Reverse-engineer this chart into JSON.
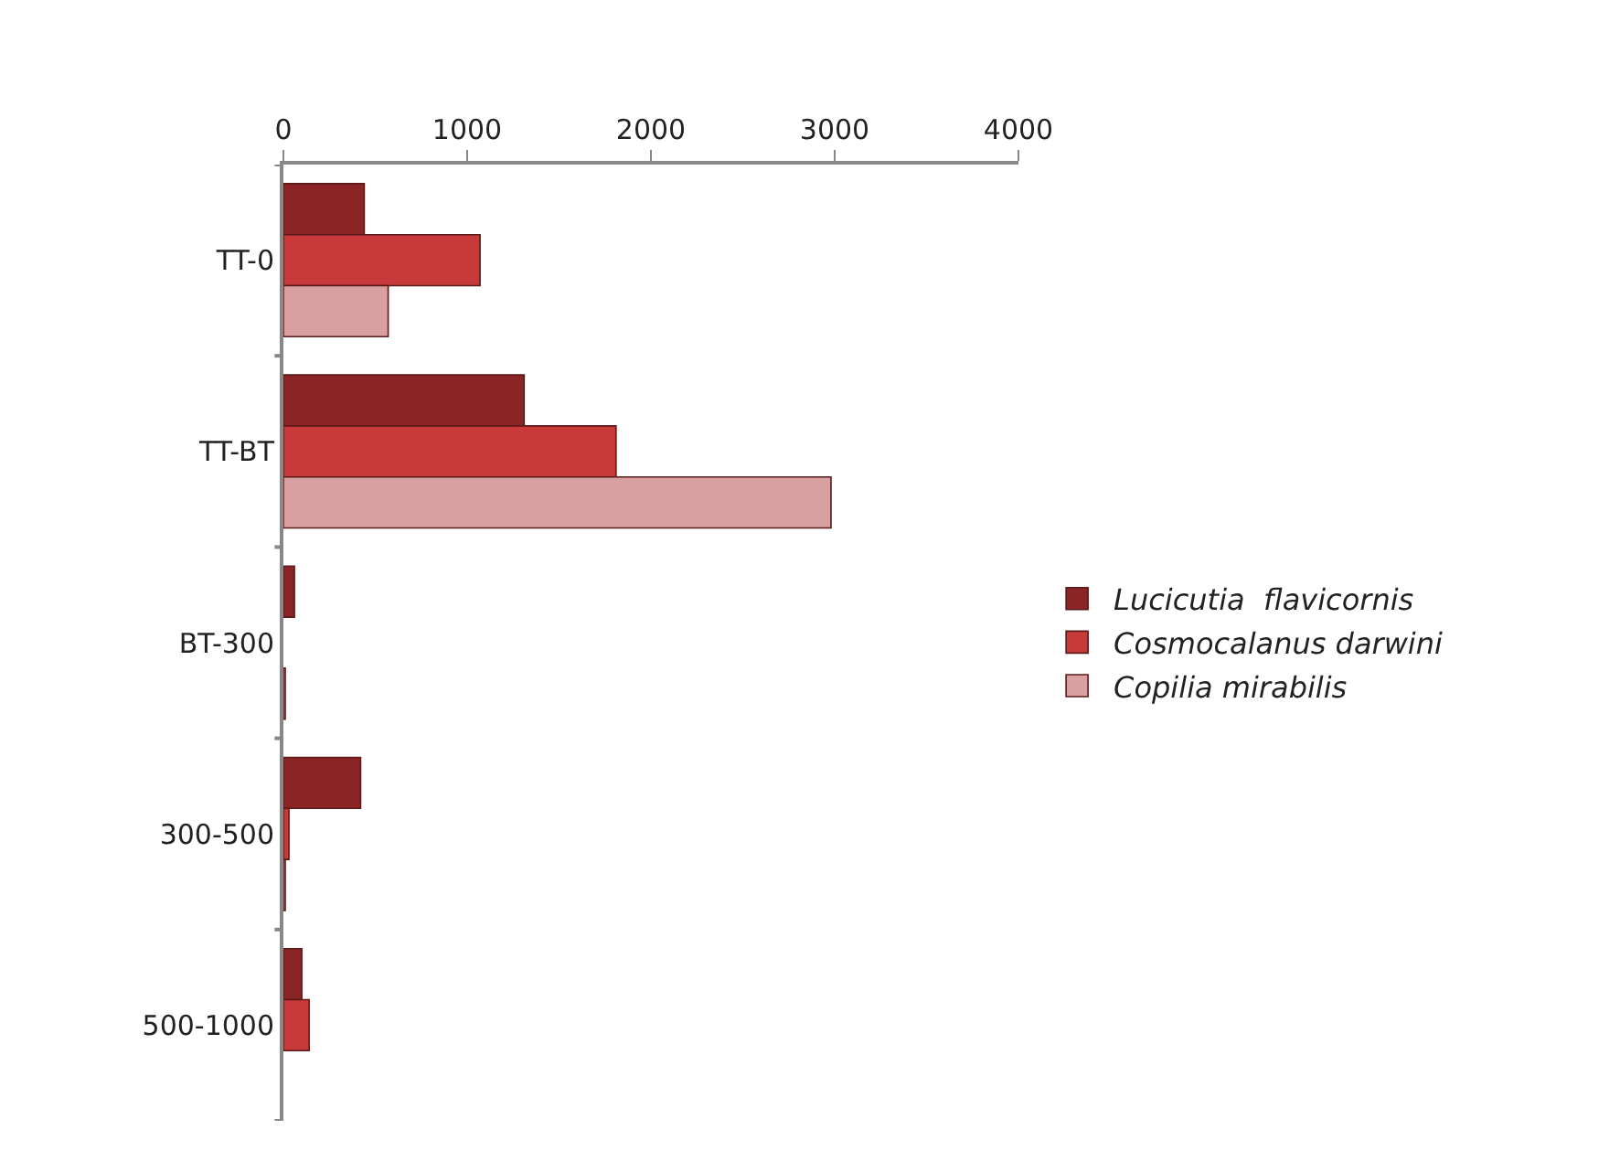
{
  "chart_data": {
    "type": "bar",
    "orientation": "horizontal",
    "categories": [
      "TT-0",
      "TT-BT",
      "BT-300",
      "300-500",
      "500-1000"
    ],
    "series": [
      {
        "name": "Lucicutia  flavicornis",
        "color": "#8b2525",
        "values": [
          440,
          1310,
          60,
          420,
          100
        ]
      },
      {
        "name": "Cosmocalanus darwini",
        "color": "#c83a3a",
        "values": [
          1070,
          1810,
          0,
          30,
          140
        ]
      },
      {
        "name": "Copilia mirabilis",
        "color": "#d8a0a0",
        "values": [
          570,
          2980,
          10,
          10,
          0
        ]
      }
    ],
    "xlim": [
      0,
      4000
    ],
    "xticks": [
      0,
      1000,
      2000,
      3000,
      4000
    ],
    "grid": false,
    "legend": "right"
  }
}
